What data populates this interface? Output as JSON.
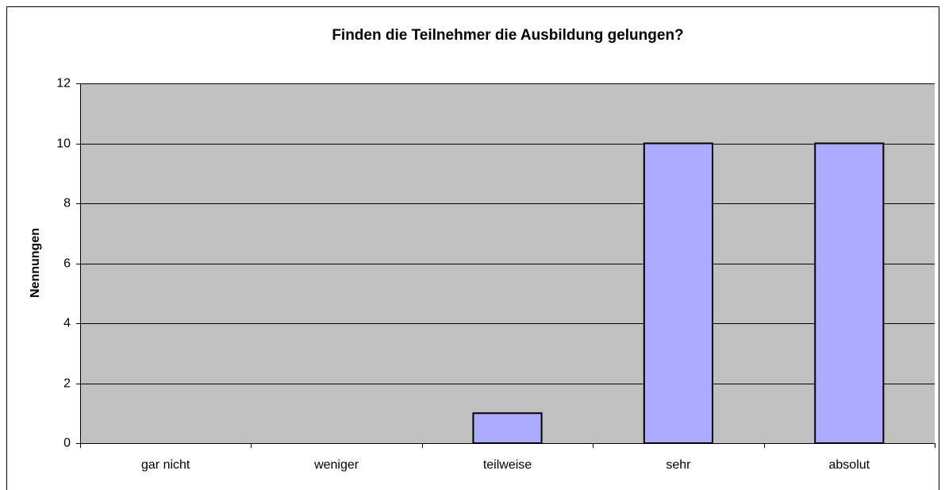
{
  "chart_data": {
    "type": "bar",
    "title": "Finden die Teilnehmer die Ausbildung gelungen?",
    "y_axis_label": "Nennungen",
    "categories": [
      "gar nicht",
      "weniger",
      "teilweise",
      "sehr",
      "absolut"
    ],
    "values": [
      0,
      0,
      1,
      10,
      10
    ],
    "color": "#aaaaff",
    "ylim": [
      0,
      12
    ],
    "yticks": [
      0,
      2,
      4,
      6,
      8,
      10,
      12
    ],
    "grid": true
  }
}
